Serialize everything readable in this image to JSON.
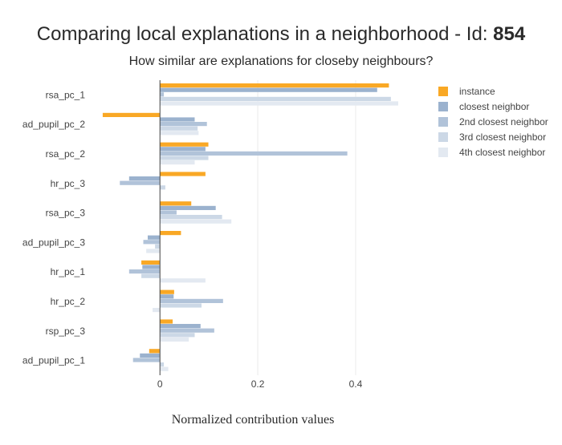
{
  "chart_data": {
    "type": "bar",
    "orientation": "horizontal",
    "title_prefix": "Comparing local explanations in a neighborhood - Id: ",
    "title_id": "854",
    "subtitle": "How similar are explanations for closeby neighbours?",
    "xlabel": "Normalized contribution values",
    "ylabel": "",
    "xlim": [
      -0.13,
      0.51
    ],
    "xticks": [
      {
        "value": 0,
        "label": "0"
      },
      {
        "value": 0.2,
        "label": "0.2"
      },
      {
        "value": 0.4,
        "label": "0.4"
      }
    ],
    "grid": true,
    "legend_position": "top-right",
    "categories": [
      "rsa_pc_1",
      "ad_pupil_pc_2",
      "rsa_pc_2",
      "hr_pc_3",
      "rsa_pc_3",
      "ad_pupil_pc_3",
      "hr_pc_1",
      "hr_pc_2",
      "rsp_pc_3",
      "ad_pupil_pc_1"
    ],
    "series": [
      {
        "name": "instance",
        "color": "#f9a825",
        "values": [
          0.468,
          -0.117,
          0.099,
          0.093,
          0.064,
          0.043,
          -0.038,
          0.029,
          0.026,
          -0.022
        ]
      },
      {
        "name": "closest neighbor",
        "color": "#9bb2ce",
        "values": [
          0.444,
          0.071,
          0.093,
          -0.063,
          0.114,
          -0.025,
          -0.036,
          0.028,
          0.083,
          -0.041
        ]
      },
      {
        "name": "2nd closest neighbor",
        "color": "#b1c3d9",
        "values": [
          0.008,
          0.096,
          0.383,
          -0.082,
          0.034,
          -0.034,
          -0.063,
          0.129,
          0.111,
          -0.055
        ]
      },
      {
        "name": "3rd closest neighbor",
        "color": "#ccd8e6",
        "values": [
          0.472,
          0.077,
          0.099,
          0.011,
          0.127,
          -0.01,
          -0.038,
          0.085,
          0.071,
          0.008
        ]
      },
      {
        "name": "4th closest neighbor",
        "color": "#e3e9f1",
        "values": [
          0.487,
          0.079,
          0.071,
          0.0,
          0.146,
          -0.028,
          0.093,
          -0.015,
          0.059,
          0.017
        ]
      }
    ]
  }
}
